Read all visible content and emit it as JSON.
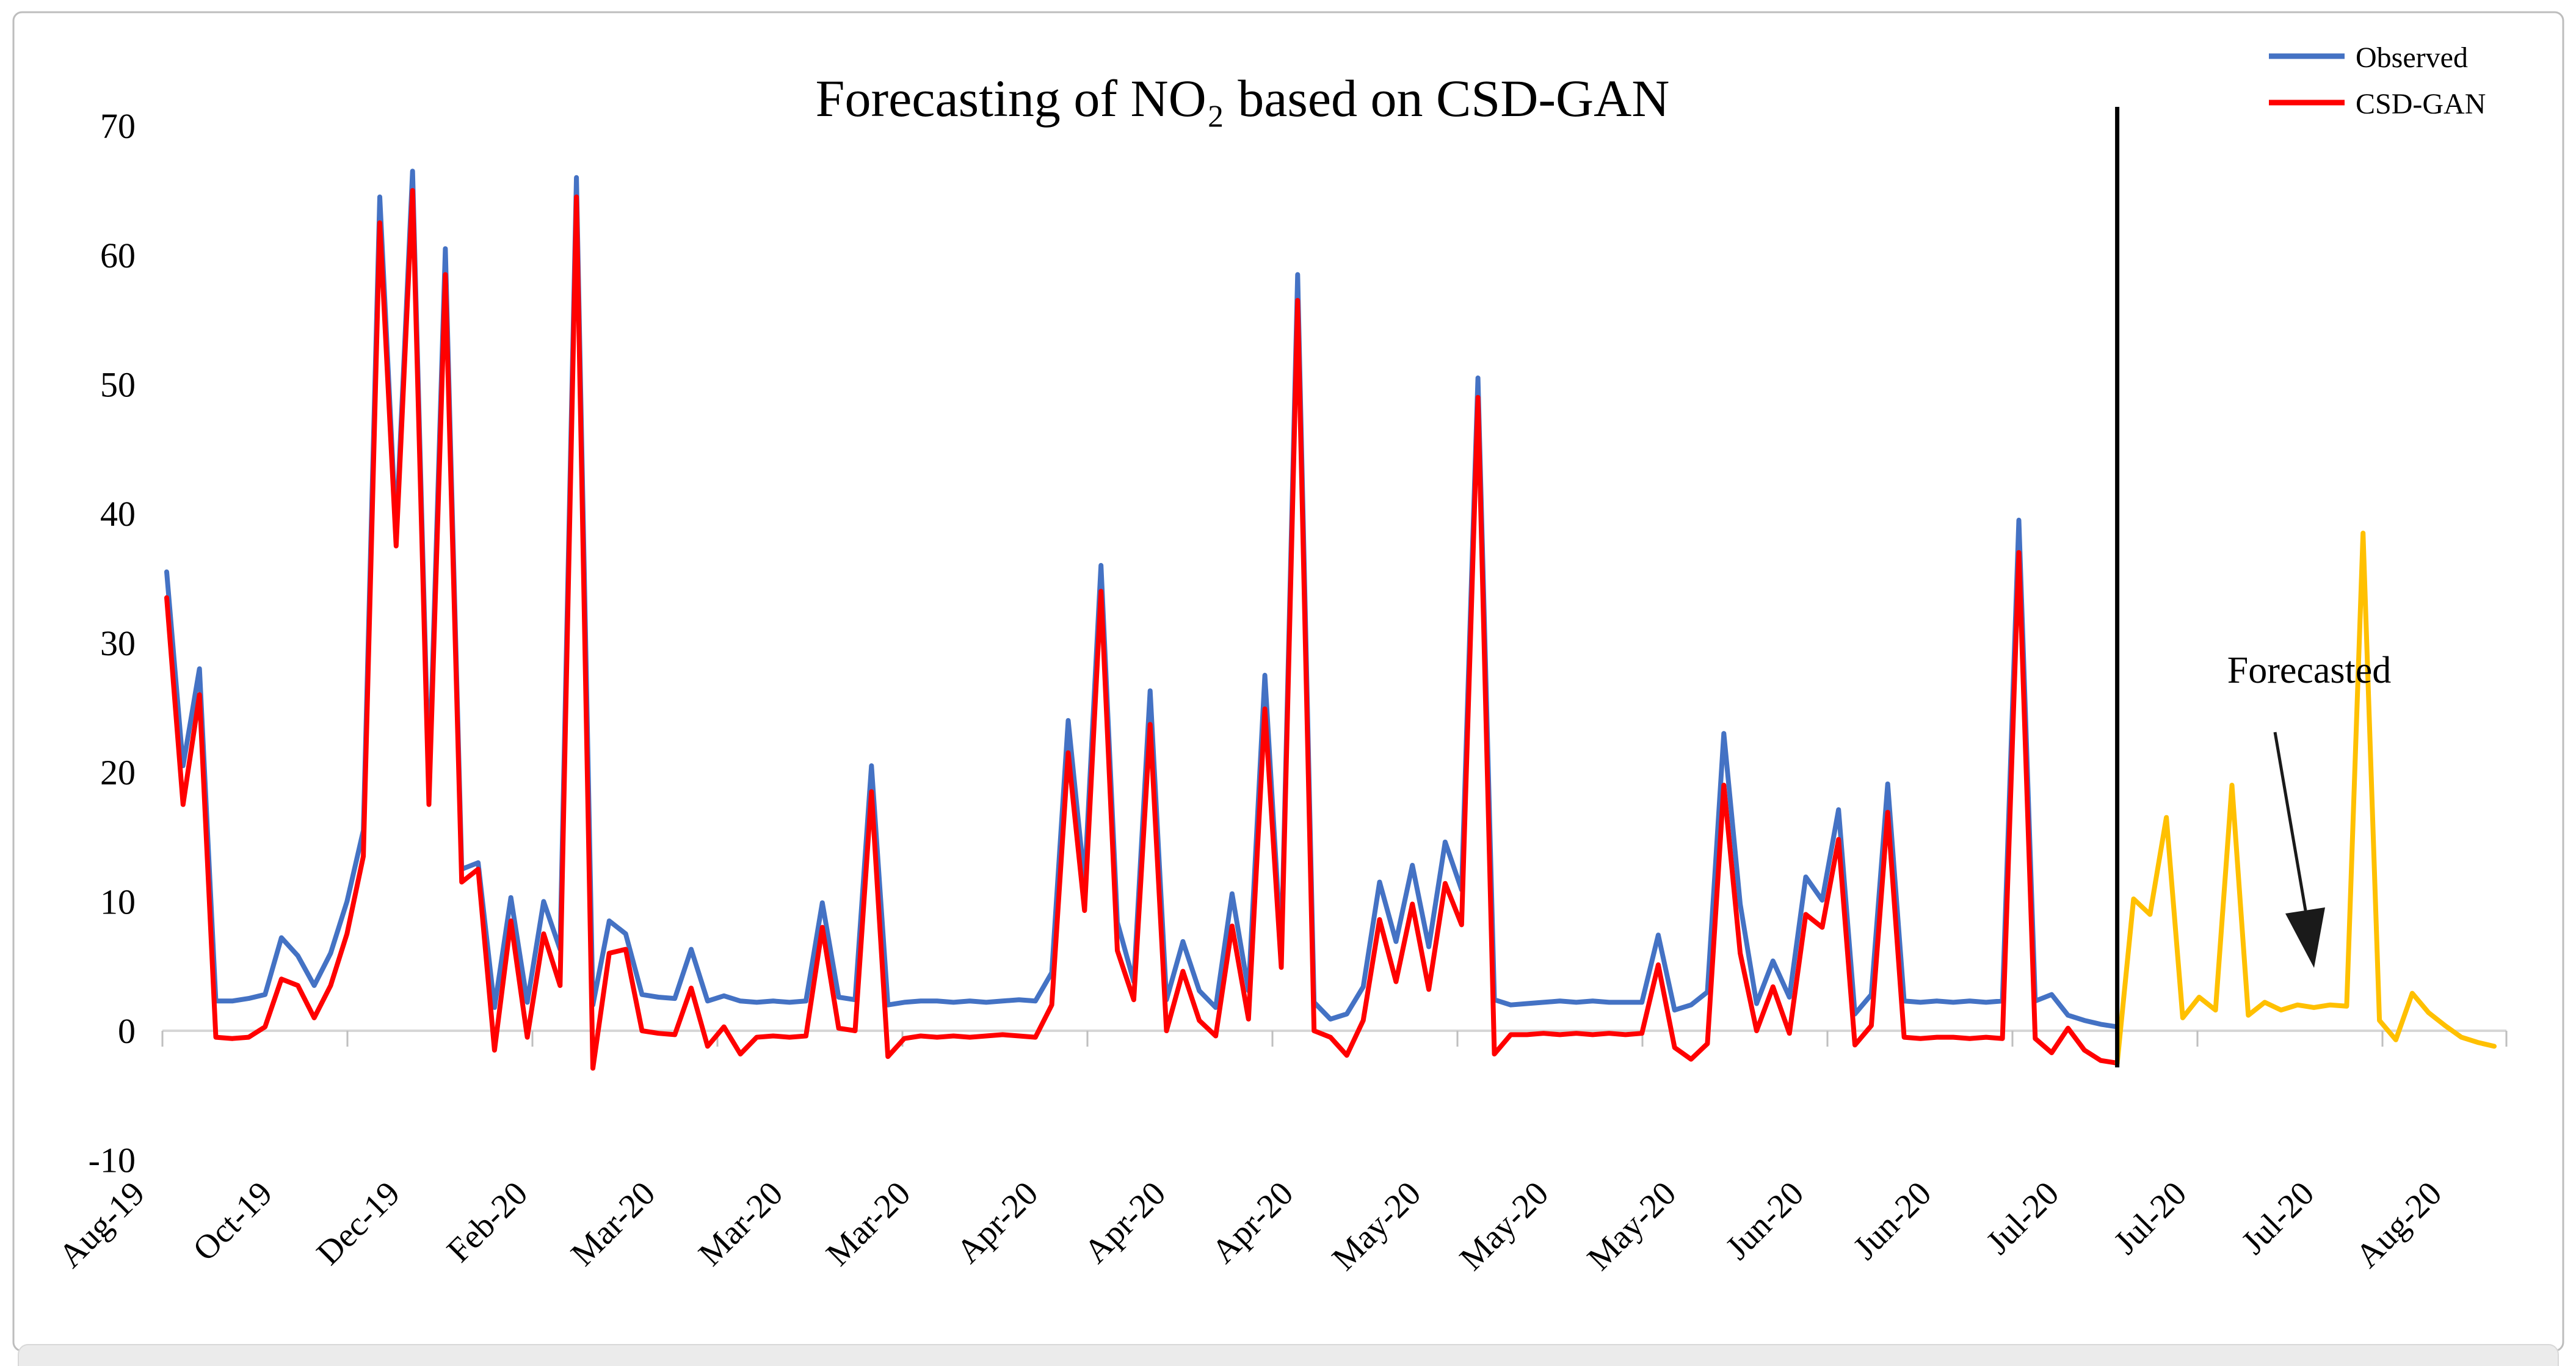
{
  "chart_data": {
    "type": "line",
    "title": "Forecasting of NO₂ based on CSD-GAN",
    "xlabel": "",
    "ylabel": "",
    "grid": "zero-line-only",
    "legend_position": "top-right",
    "ylim": [
      -10,
      71
    ],
    "y_ticks": [
      70,
      60,
      50,
      40,
      30,
      20,
      10,
      0,
      -10
    ],
    "x_labels": [
      "Aug-19",
      "Oct-19",
      "Dec-19",
      "Feb-20",
      "Mar-20",
      "Mar-20",
      "Mar-20",
      "Apr-20",
      "Apr-20",
      "Apr-20",
      "May-20",
      "May-20",
      "May-20",
      "Jun-20",
      "Jun-20",
      "Jul-20",
      "Jul-20",
      "Jul-20",
      "Aug-20"
    ],
    "legend": [
      {
        "label": "Observed",
        "color": "#4472C4"
      },
      {
        "label": "CSD-GAN",
        "color": "#FF0000"
      }
    ],
    "annotation": {
      "label": "Forecasted"
    },
    "divider_at_index": 119,
    "total_points": 143,
    "series": [
      {
        "name": "Observed",
        "color": "#4472C4",
        "start_index": 0,
        "values": [
          35.5,
          20.5,
          28,
          2.3,
          2.3,
          2.5,
          2.8,
          7.2,
          5.8,
          3.5,
          6,
          10,
          15.5,
          64.5,
          38.5,
          66.5,
          19,
          60.5,
          12.5,
          13,
          1.8,
          10.3,
          2.2,
          10,
          6.3,
          66,
          2,
          8.5,
          7.5,
          2.8,
          2.6,
          2.5,
          6.3,
          2.3,
          2.7,
          2.3,
          2.2,
          2.3,
          2.2,
          2.3,
          9.9,
          2.6,
          2.4,
          20.5,
          2,
          2.2,
          2.3,
          2.3,
          2.2,
          2.3,
          2.2,
          2.3,
          2.4,
          2.3,
          4.5,
          24,
          11.5,
          36,
          8.4,
          3.8,
          26.3,
          2.4,
          6.9,
          3.1,
          1.8,
          10.6,
          3.1,
          27.5,
          6.1,
          58.5,
          2.2,
          0.9,
          1.3,
          3.4,
          11.5,
          6.9,
          12.8,
          6.5,
          14.6,
          10.9,
          50.5,
          2.4,
          2,
          2.1,
          2.2,
          2.3,
          2.2,
          2.3,
          2.2,
          2.2,
          2.2,
          7.4,
          1.6,
          2,
          3,
          23,
          9.8,
          2.1,
          5.4,
          2.6,
          11.9,
          10.1,
          17.1,
          1.3,
          2.8,
          19.1,
          2.3,
          2.2,
          2.3,
          2.2,
          2.3,
          2.2,
          2.3,
          39.5,
          2.3,
          2.8,
          1.2,
          0.8,
          0.5,
          0.3
        ]
      },
      {
        "name": "CSD-GAN",
        "color": "#FF0000",
        "start_index": 0,
        "values": [
          33.5,
          17.5,
          26,
          -0.5,
          -0.6,
          -0.5,
          0.3,
          4,
          3.5,
          1,
          3.5,
          7.5,
          13.5,
          62.5,
          37.5,
          65,
          17.5,
          58.5,
          11.5,
          12.5,
          -1.5,
          8.5,
          -0.5,
          7.5,
          3.5,
          64.5,
          -2.9,
          6,
          6.3,
          0,
          -0.2,
          -0.3,
          3.3,
          -1.2,
          0.3,
          -1.8,
          -0.5,
          -0.4,
          -0.5,
          -0.4,
          8,
          0.2,
          0,
          18.5,
          -2,
          -0.6,
          -0.4,
          -0.5,
          -0.4,
          -0.5,
          -0.4,
          -0.3,
          -0.4,
          -0.5,
          2,
          21.5,
          9.3,
          34,
          6.2,
          2.4,
          23.7,
          0,
          4.6,
          0.8,
          -0.4,
          8.1,
          0.9,
          24.9,
          4.9,
          56.5,
          0,
          -0.5,
          -1.9,
          0.8,
          8.6,
          3.8,
          9.8,
          3.2,
          11.4,
          8.2,
          49,
          -1.8,
          -0.3,
          -0.3,
          -0.2,
          -0.3,
          -0.2,
          -0.3,
          -0.2,
          -0.3,
          -0.2,
          5.1,
          -1.3,
          -2.2,
          -1,
          19,
          6,
          0,
          3.4,
          -0.2,
          9,
          8,
          14.8,
          -1.1,
          0.4,
          16.9,
          -0.5,
          -0.6,
          -0.5,
          -0.5,
          -0.6,
          -0.5,
          -0.6,
          37,
          -0.6,
          -1.7,
          0.2,
          -1.5,
          -2.3,
          -2.5
        ]
      },
      {
        "name": "Forecasted",
        "color": "#FFC000",
        "start_index": 119,
        "values": [
          -2.5,
          10.2,
          9,
          16.5,
          1,
          2.6,
          1.6,
          19,
          1.2,
          2.2,
          1.6,
          2,
          1.8,
          2,
          1.9,
          38.5,
          0.8,
          -0.7,
          2.9,
          1.4,
          0.4,
          -0.5,
          -0.9,
          -1.2
        ]
      }
    ],
    "colors": {
      "observed": "#4472C4",
      "csd_gan": "#FF0000",
      "forecast": "#FFC000",
      "axis_line": "#D6D6D6",
      "tick": "#BFBFBF",
      "divider": "#000000",
      "border": "#BDBDBD"
    }
  }
}
